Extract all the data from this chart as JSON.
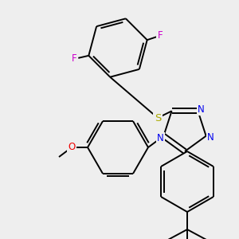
{
  "background_color": "#eeeeee",
  "figsize": [
    3.0,
    3.0
  ],
  "dpi": 100,
  "bond_lw": 1.4,
  "font_size": 8.5,
  "colors": {
    "black": "#000000",
    "F": "#cc00cc",
    "S": "#aaaa00",
    "N": "#0000ee",
    "O": "#ee0000"
  }
}
